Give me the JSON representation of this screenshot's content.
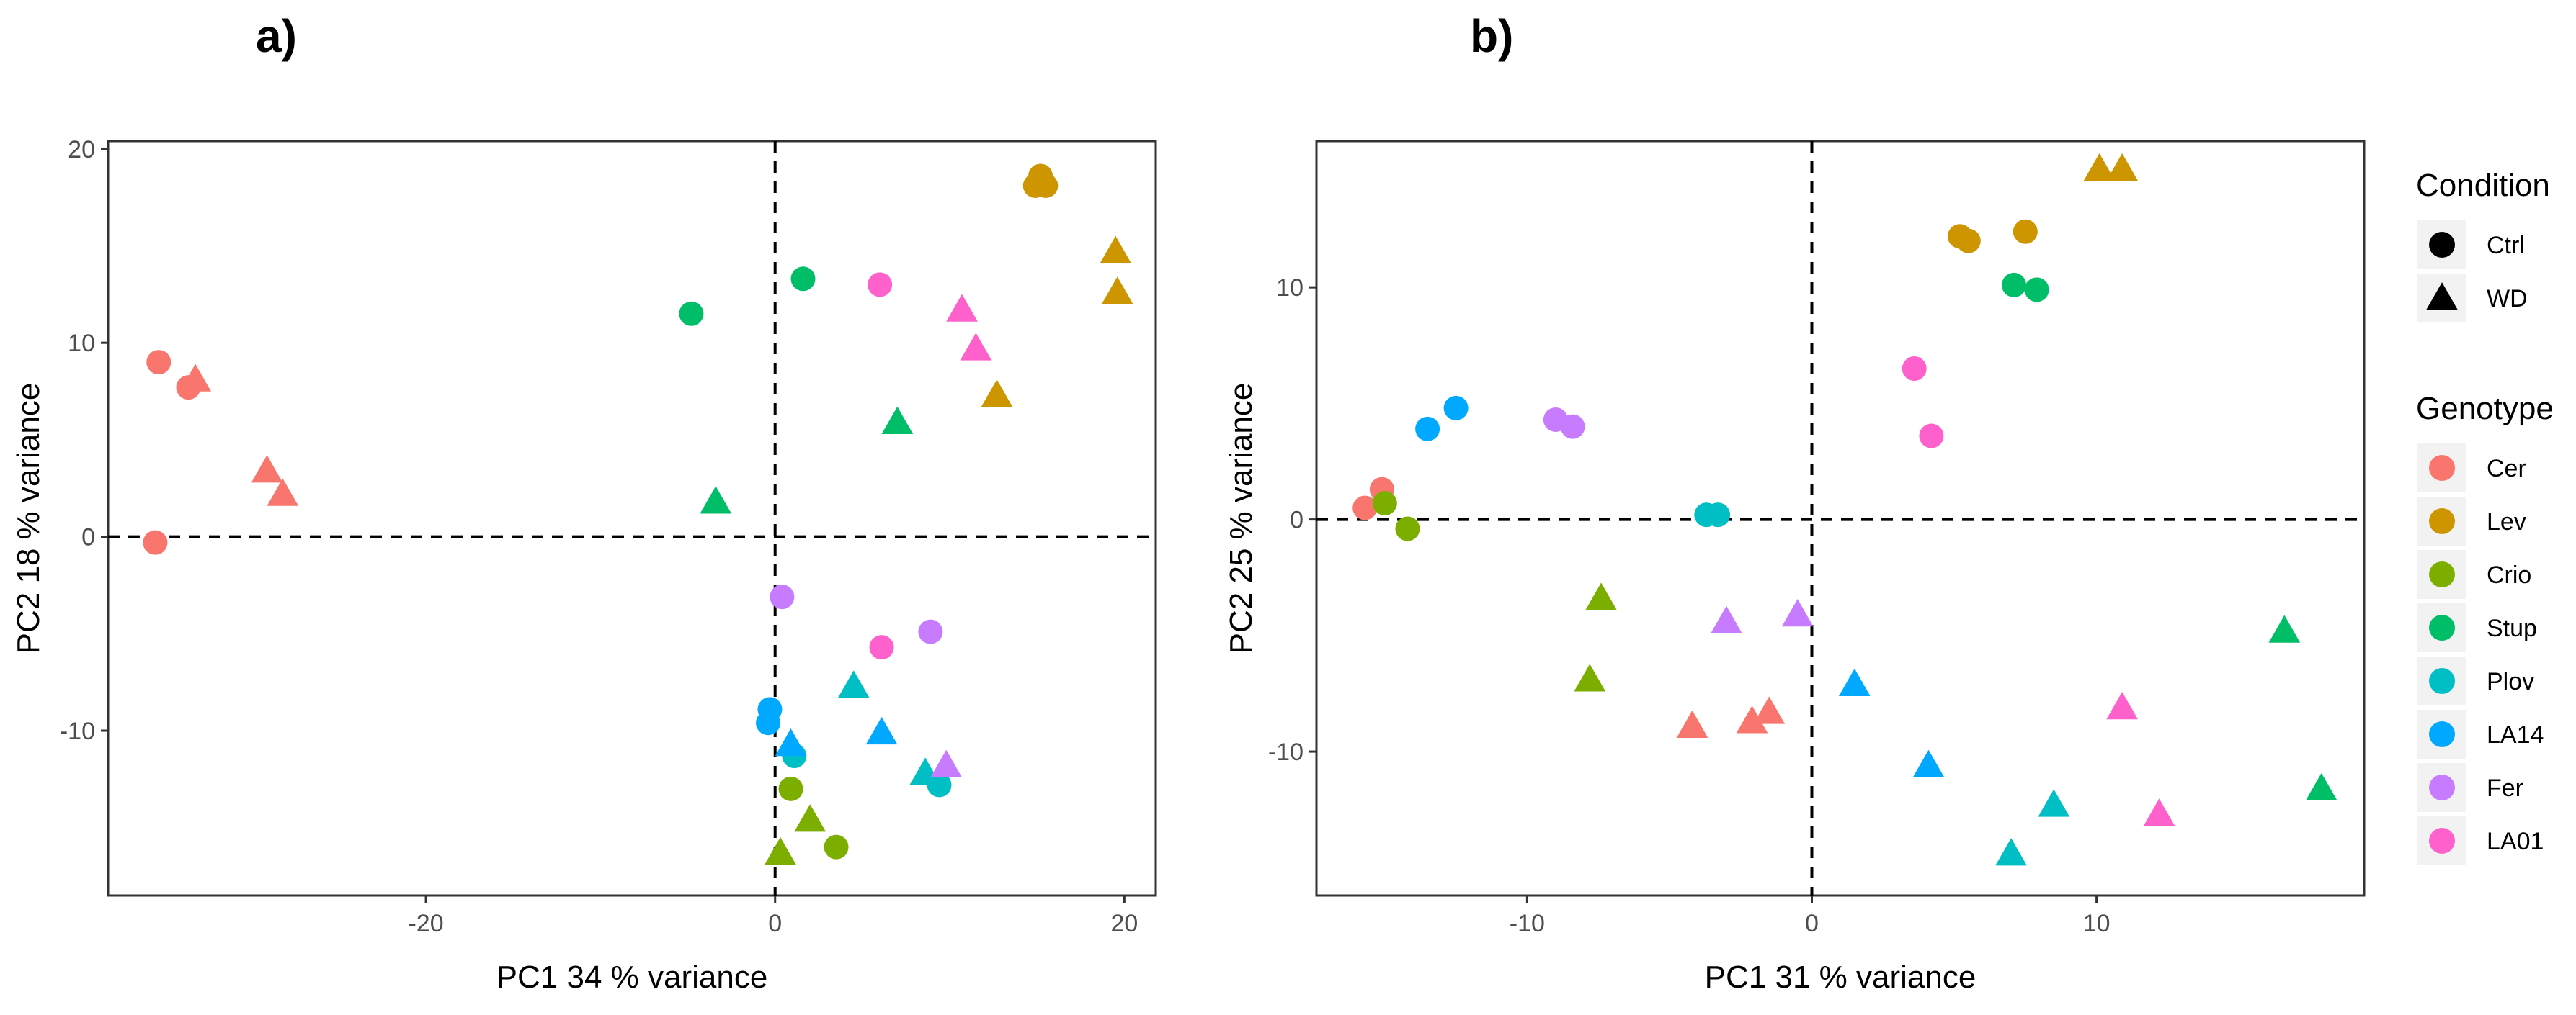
{
  "figure": {
    "panels": [
      "a)",
      "b)"
    ],
    "legend": {
      "condition_title": "Condition",
      "condition_items": [
        {
          "label": "Ctrl",
          "shape": "circle"
        },
        {
          "label": "WD",
          "shape": "triangle"
        }
      ],
      "genotype_title": "Genotype",
      "genotype_items": [
        {
          "label": "Cer",
          "color": "#F8766D"
        },
        {
          "label": "Lev",
          "color": "#CD9600"
        },
        {
          "label": "Crio",
          "color": "#7CAE00"
        },
        {
          "label": "Stup",
          "color": "#00BE67"
        },
        {
          "label": "Plov",
          "color": "#00BFC4"
        },
        {
          "label": "LA14",
          "color": "#00A9FF"
        },
        {
          "label": "Fer",
          "color": "#C77CFF"
        },
        {
          "label": "LA01",
          "color": "#FF61CC"
        }
      ]
    }
  },
  "chart_data": [
    {
      "type": "scatter",
      "panel": "a)",
      "xlabel": "PC1 34 % variance",
      "ylabel": "PC2 18 % variance",
      "xlim": [
        -38.2,
        21.8
      ],
      "ylim": [
        -18.5,
        20.4
      ],
      "xticks": [
        -20,
        0,
        20
      ],
      "yticks": [
        -10,
        0,
        10,
        20
      ],
      "reference_lines": {
        "x": 0,
        "y": 0
      },
      "points": [
        {
          "genotype": "Cer",
          "condition": "Ctrl",
          "x": -35.3,
          "y": 9.0
        },
        {
          "genotype": "Cer",
          "condition": "Ctrl",
          "x": -33.6,
          "y": 7.7
        },
        {
          "genotype": "Cer",
          "condition": "Ctrl",
          "x": -35.5,
          "y": -0.3
        },
        {
          "genotype": "Cer",
          "condition": "WD",
          "x": -33.2,
          "y": 8.1
        },
        {
          "genotype": "Cer",
          "condition": "WD",
          "x": -29.1,
          "y": 3.4
        },
        {
          "genotype": "Cer",
          "condition": "WD",
          "x": -28.2,
          "y": 2.2
        },
        {
          "genotype": "Lev",
          "condition": "Ctrl",
          "x": 15.2,
          "y": 18.6
        },
        {
          "genotype": "Lev",
          "condition": "Ctrl",
          "x": 14.9,
          "y": 18.1
        },
        {
          "genotype": "Lev",
          "condition": "Ctrl",
          "x": 15.5,
          "y": 18.1
        },
        {
          "genotype": "Lev",
          "condition": "WD",
          "x": 19.5,
          "y": 14.7
        },
        {
          "genotype": "Lev",
          "condition": "WD",
          "x": 19.6,
          "y": 12.6
        },
        {
          "genotype": "Lev",
          "condition": "WD",
          "x": 12.7,
          "y": 7.3
        },
        {
          "genotype": "Crio",
          "condition": "Ctrl",
          "x": 0.9,
          "y": -13.0
        },
        {
          "genotype": "Crio",
          "condition": "Ctrl",
          "x": 3.5,
          "y": -16.0
        },
        {
          "genotype": "Crio",
          "condition": "WD",
          "x": 2.0,
          "y": -14.6
        },
        {
          "genotype": "Crio",
          "condition": "WD",
          "x": 0.3,
          "y": -16.3
        },
        {
          "genotype": "Stup",
          "condition": "Ctrl",
          "x": -4.8,
          "y": 11.5
        },
        {
          "genotype": "Stup",
          "condition": "Ctrl",
          "x": 1.6,
          "y": 13.3
        },
        {
          "genotype": "Stup",
          "condition": "WD",
          "x": 7.0,
          "y": 5.9
        },
        {
          "genotype": "Stup",
          "condition": "WD",
          "x": -3.4,
          "y": 1.8
        },
        {
          "genotype": "Plov",
          "condition": "Ctrl",
          "x": 1.1,
          "y": -11.3
        },
        {
          "genotype": "Plov",
          "condition": "Ctrl",
          "x": 9.4,
          "y": -12.8
        },
        {
          "genotype": "Plov",
          "condition": "WD",
          "x": 4.5,
          "y": -7.7
        },
        {
          "genotype": "Plov",
          "condition": "WD",
          "x": 8.6,
          "y": -12.2
        },
        {
          "genotype": "LA14",
          "condition": "Ctrl",
          "x": -0.3,
          "y": -8.9
        },
        {
          "genotype": "LA14",
          "condition": "Ctrl",
          "x": -0.4,
          "y": -9.6
        },
        {
          "genotype": "LA14",
          "condition": "WD",
          "x": 0.9,
          "y": -10.7
        },
        {
          "genotype": "LA14",
          "condition": "WD",
          "x": 6.1,
          "y": -10.1
        },
        {
          "genotype": "Fer",
          "condition": "Ctrl",
          "x": 0.4,
          "y": -3.1
        },
        {
          "genotype": "Fer",
          "condition": "Ctrl",
          "x": 8.9,
          "y": -4.9
        },
        {
          "genotype": "Fer",
          "condition": "WD",
          "x": 9.8,
          "y": -11.8
        },
        {
          "genotype": "LA01",
          "condition": "Ctrl",
          "x": 6.0,
          "y": 13.0
        },
        {
          "genotype": "LA01",
          "condition": "Ctrl",
          "x": 6.1,
          "y": -5.7
        },
        {
          "genotype": "LA01",
          "condition": "WD",
          "x": 10.7,
          "y": 11.7
        },
        {
          "genotype": "LA01",
          "condition": "WD",
          "x": 11.5,
          "y": 9.7
        }
      ]
    },
    {
      "type": "scatter",
      "panel": "b)",
      "xlabel": "PC1 31 % variance",
      "ylabel": "PC2 25 % variance",
      "xlim": [
        -17.4,
        19.4
      ],
      "ylim": [
        -16.2,
        16.3
      ],
      "xticks": [
        -10,
        0,
        10
      ],
      "yticks": [
        -10,
        0,
        10
      ],
      "reference_lines": {
        "x": 0,
        "y": 0
      },
      "points": [
        {
          "genotype": "Cer",
          "condition": "Ctrl",
          "x": -15.7,
          "y": 0.5
        },
        {
          "genotype": "Cer",
          "condition": "Ctrl",
          "x": -15.1,
          "y": 1.3
        },
        {
          "genotype": "Cer",
          "condition": "WD",
          "x": -4.2,
          "y": -8.9
        },
        {
          "genotype": "Cer",
          "condition": "WD",
          "x": -2.1,
          "y": -8.7
        },
        {
          "genotype": "Cer",
          "condition": "WD",
          "x": -1.5,
          "y": -8.3
        },
        {
          "genotype": "Lev",
          "condition": "Ctrl",
          "x": 5.2,
          "y": 12.2
        },
        {
          "genotype": "Lev",
          "condition": "Ctrl",
          "x": 5.5,
          "y": 12.0
        },
        {
          "genotype": "Lev",
          "condition": "Ctrl",
          "x": 7.5,
          "y": 12.4
        },
        {
          "genotype": "Lev",
          "condition": "WD",
          "x": 10.1,
          "y": 15.1
        },
        {
          "genotype": "Lev",
          "condition": "WD",
          "x": 10.9,
          "y": 15.1
        },
        {
          "genotype": "Crio",
          "condition": "Ctrl",
          "x": -15.0,
          "y": 0.7
        },
        {
          "genotype": "Crio",
          "condition": "Ctrl",
          "x": -14.2,
          "y": -0.4
        },
        {
          "genotype": "Crio",
          "condition": "WD",
          "x": -7.4,
          "y": -3.4
        },
        {
          "genotype": "Crio",
          "condition": "WD",
          "x": -7.8,
          "y": -6.9
        },
        {
          "genotype": "Stup",
          "condition": "Ctrl",
          "x": 7.1,
          "y": 10.1
        },
        {
          "genotype": "Stup",
          "condition": "Ctrl",
          "x": 7.9,
          "y": 9.9
        },
        {
          "genotype": "Stup",
          "condition": "WD",
          "x": 16.6,
          "y": -4.8
        },
        {
          "genotype": "Stup",
          "condition": "WD",
          "x": 17.9,
          "y": -11.6
        },
        {
          "genotype": "Plov",
          "condition": "Ctrl",
          "x": -3.7,
          "y": 0.2
        },
        {
          "genotype": "Plov",
          "condition": "Ctrl",
          "x": -3.3,
          "y": 0.2
        },
        {
          "genotype": "Plov",
          "condition": "WD",
          "x": 8.5,
          "y": -12.3
        },
        {
          "genotype": "Plov",
          "condition": "WD",
          "x": 7.0,
          "y": -14.4
        },
        {
          "genotype": "LA14",
          "condition": "Ctrl",
          "x": -13.5,
          "y": 3.9
        },
        {
          "genotype": "LA14",
          "condition": "Ctrl",
          "x": -12.5,
          "y": 4.8
        },
        {
          "genotype": "LA14",
          "condition": "WD",
          "x": 1.5,
          "y": -7.1
        },
        {
          "genotype": "LA14",
          "condition": "WD",
          "x": 4.1,
          "y": -10.6
        },
        {
          "genotype": "Fer",
          "condition": "Ctrl",
          "x": -9.0,
          "y": 4.3
        },
        {
          "genotype": "Fer",
          "condition": "Ctrl",
          "x": -8.4,
          "y": 4.0
        },
        {
          "genotype": "Fer",
          "condition": "WD",
          "x": -3.0,
          "y": -4.4
        },
        {
          "genotype": "Fer",
          "condition": "WD",
          "x": -0.5,
          "y": -4.1
        },
        {
          "genotype": "LA01",
          "condition": "Ctrl",
          "x": 3.6,
          "y": 6.5
        },
        {
          "genotype": "LA01",
          "condition": "Ctrl",
          "x": 4.2,
          "y": 3.6
        },
        {
          "genotype": "LA01",
          "condition": "WD",
          "x": 10.9,
          "y": -8.1
        },
        {
          "genotype": "LA01",
          "condition": "WD",
          "x": 12.2,
          "y": -12.7
        }
      ]
    }
  ]
}
